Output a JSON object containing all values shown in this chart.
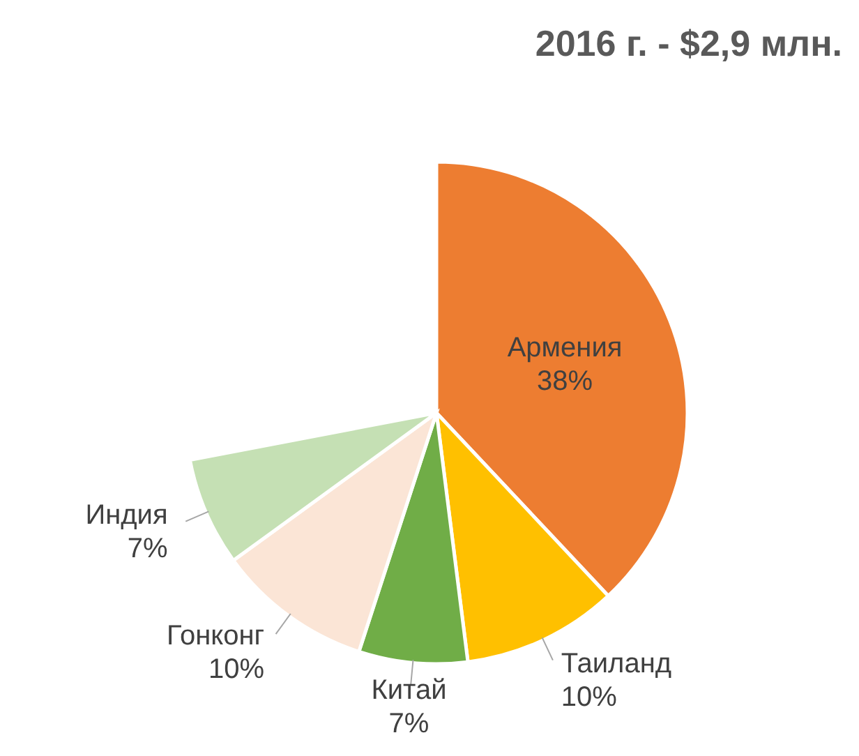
{
  "chart_data": {
    "type": "pie",
    "title": "2016 г. - $2,9 млн.",
    "categories": [
      "Армения",
      "Таиланд",
      "Китай",
      "Гонконг",
      "Индия"
    ],
    "values": [
      38,
      10,
      7,
      10,
      7
    ],
    "value_labels": [
      "38%",
      "10%",
      "7%",
      "10%",
      "7%"
    ],
    "colors": [
      "#ed7d31",
      "#ffc000",
      "#70ad47",
      "#fbe5d6",
      "#c5e0b4"
    ],
    "legend": false
  }
}
